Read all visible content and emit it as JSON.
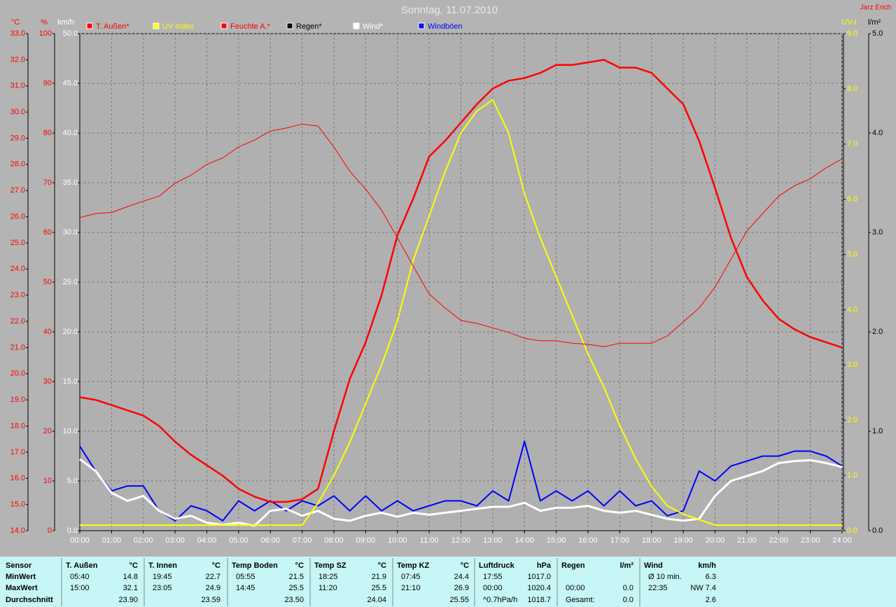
{
  "chart_data": {
    "type": "line",
    "title": "Sonntag, 11.07.2010",
    "author": "Jarz Erich",
    "xlim": [
      0,
      24
    ],
    "xticks": [
      {
        "value": 0,
        "label": "00:00"
      },
      {
        "value": 1,
        "label": "01:00"
      },
      {
        "value": 2,
        "label": "02:00"
      },
      {
        "value": 3,
        "label": "03:00"
      },
      {
        "value": 4,
        "label": "04:00"
      },
      {
        "value": 5,
        "label": "05:00"
      },
      {
        "value": 6,
        "label": "06:00"
      },
      {
        "value": 7,
        "label": "07:00"
      },
      {
        "value": 8,
        "label": "08:00"
      },
      {
        "value": 9,
        "label": "09:00"
      },
      {
        "value": 10,
        "label": "10:00"
      },
      {
        "value": 11,
        "label": "11:00"
      },
      {
        "value": 12,
        "label": "12:00"
      },
      {
        "value": 13,
        "label": "13:00"
      },
      {
        "value": 14,
        "label": "14:00"
      },
      {
        "value": 15,
        "label": "15:00"
      },
      {
        "value": 16,
        "label": "16:00"
      },
      {
        "value": 17,
        "label": "17:00"
      },
      {
        "value": 18,
        "label": "18:00"
      },
      {
        "value": 19,
        "label": "19:00"
      },
      {
        "value": 20,
        "label": "20:00"
      },
      {
        "value": 21,
        "label": "21:00"
      },
      {
        "value": 22,
        "label": "22:00"
      },
      {
        "value": 23,
        "label": "23:00"
      },
      {
        "value": 24,
        "label": "24:00"
      }
    ],
    "axes": [
      {
        "unit": "°C",
        "color": "#ff0000",
        "lim": [
          14,
          33
        ],
        "ticks": [
          {
            "value": 14,
            "label": "14.0"
          },
          {
            "value": 15,
            "label": "15.0"
          },
          {
            "value": 16,
            "label": "16.0"
          },
          {
            "value": 17,
            "label": "17.0"
          },
          {
            "value": 18,
            "label": "18.0"
          },
          {
            "value": 19,
            "label": "19.0"
          },
          {
            "value": 20,
            "label": "20.0"
          },
          {
            "value": 21,
            "label": "21.0"
          },
          {
            "value": 22,
            "label": "22.0"
          },
          {
            "value": 23,
            "label": "23.0"
          },
          {
            "value": 24,
            "label": "24.0"
          },
          {
            "value": 25,
            "label": "25.0"
          },
          {
            "value": 26,
            "label": "26.0"
          },
          {
            "value": 27,
            "label": "27.0"
          },
          {
            "value": 28,
            "label": "28.0"
          },
          {
            "value": 29,
            "label": "29.0"
          },
          {
            "value": 30,
            "label": "30.0"
          },
          {
            "value": 31,
            "label": "31.0"
          },
          {
            "value": 32,
            "label": "32.0"
          },
          {
            "value": 33,
            "label": "33.0"
          }
        ]
      },
      {
        "unit": "%",
        "color": "#ff0000",
        "lim": [
          0,
          100
        ],
        "ticks": [
          0,
          10,
          20,
          30,
          40,
          50,
          60,
          70,
          80,
          90,
          100
        ]
      },
      {
        "unit": "km/h",
        "color": "#ffffff",
        "lim": [
          0,
          50
        ],
        "grid": true,
        "ticks": [
          {
            "value": 0,
            "label": "0.0"
          },
          {
            "value": 5,
            "label": "5.0"
          },
          {
            "value": 10,
            "label": "10.0"
          },
          {
            "value": 15,
            "label": "15.0"
          },
          {
            "value": 20,
            "label": "20.0"
          },
          {
            "value": 25,
            "label": "25.0"
          },
          {
            "value": 30,
            "label": "30.0"
          },
          {
            "value": 35,
            "label": "35.0"
          },
          {
            "value": 40,
            "label": "40.0"
          },
          {
            "value": 45,
            "label": "45.0"
          },
          {
            "value": 50,
            "label": "50.0"
          }
        ]
      },
      {
        "unit": "UV-I",
        "color": "#ffff00",
        "lim": [
          0,
          9
        ],
        "ticks": [
          {
            "value": 0,
            "label": "0.0"
          },
          {
            "value": 1,
            "label": "1.0"
          },
          {
            "value": 2,
            "label": "2.0"
          },
          {
            "value": 3,
            "label": "3.0"
          },
          {
            "value": 4,
            "label": "4.0"
          },
          {
            "value": 5,
            "label": "5.0"
          },
          {
            "value": 6,
            "label": "6.0"
          },
          {
            "value": 7,
            "label": "7.0"
          },
          {
            "value": 8,
            "label": "8.0"
          },
          {
            "value": 9,
            "label": "9.0"
          }
        ]
      },
      {
        "unit": "l/m²",
        "color": "#000000",
        "lim": [
          0,
          5
        ],
        "ticks": [
          {
            "value": 0,
            "label": "0.0"
          },
          {
            "value": 1,
            "label": "1.0"
          },
          {
            "value": 2,
            "label": "2.0"
          },
          {
            "value": 3,
            "label": "3.0"
          },
          {
            "value": 4,
            "label": "4.0"
          },
          {
            "value": 5,
            "label": "5.0"
          }
        ]
      }
    ],
    "x": [
      0,
      0.5,
      1,
      1.5,
      2,
      2.5,
      3,
      3.5,
      4,
      4.5,
      5,
      5.5,
      6,
      6.5,
      7,
      7.5,
      8,
      8.5,
      9,
      9.5,
      10,
      10.5,
      11,
      11.5,
      12,
      12.5,
      13,
      13.5,
      14,
      14.5,
      15,
      15.5,
      16,
      16.5,
      17,
      17.5,
      18,
      18.5,
      19,
      19.5,
      20,
      20.5,
      21,
      21.5,
      22,
      22.5,
      23,
      23.5,
      24
    ],
    "series": [
      {
        "name": "T. Außen*",
        "color": "#ff0000",
        "axis": 0,
        "values": [
          19.1,
          19.0,
          18.8,
          18.6,
          18.4,
          18.0,
          17.4,
          16.9,
          16.5,
          16.1,
          15.6,
          15.3,
          15.1,
          15.1,
          15.2,
          15.6,
          17.8,
          19.8,
          21.2,
          23.0,
          25.3,
          26.7,
          28.3,
          28.9,
          29.6,
          30.3,
          30.9,
          31.2,
          31.3,
          31.5,
          31.8,
          31.8,
          31.9,
          32.0,
          31.7,
          31.7,
          31.5,
          30.9,
          30.3,
          28.9,
          27.1,
          25.2,
          23.7,
          22.8,
          22.1,
          21.7,
          21.4,
          21.2,
          21.0
        ]
      },
      {
        "name": "UV Index",
        "color": "#ffff00",
        "axis": 3,
        "values": [
          0.1,
          0.1,
          0.1,
          0.1,
          0.1,
          0.1,
          0.1,
          0.1,
          0.1,
          0.1,
          0.1,
          0.1,
          0.1,
          0.1,
          0.1,
          0.5,
          1.0,
          1.6,
          2.3,
          3.0,
          3.8,
          4.9,
          5.7,
          6.5,
          7.2,
          7.6,
          7.8,
          7.2,
          6.1,
          5.3,
          4.6,
          3.9,
          3.2,
          2.6,
          1.9,
          1.3,
          0.8,
          0.45,
          0.3,
          0.2,
          0.1,
          0.1,
          0.1,
          0.1,
          0.1,
          0.1,
          0.1,
          0.1,
          0.1
        ]
      },
      {
        "name": "Feuchte A.*",
        "color": "#ff0000",
        "axis": 1,
        "values": [
          63,
          63.8,
          64,
          65.2,
          66.3,
          67.3,
          69.9,
          71.5,
          73.7,
          75,
          77.2,
          78.6,
          80.4,
          81,
          81.8,
          81.4,
          77.2,
          72.3,
          68.7,
          64.5,
          58.9,
          53.2,
          47.6,
          44.8,
          42.3,
          41.7,
          40.8,
          39.9,
          38.7,
          38.2,
          38.2,
          37.7,
          37.5,
          37.0,
          37.7,
          37.7,
          37.7,
          39.2,
          42,
          44.8,
          49,
          54.6,
          60.3,
          63.8,
          67.3,
          69.4,
          70.8,
          73,
          74.8
        ]
      },
      {
        "name": "Regen*",
        "color": "#000000",
        "axis": 4,
        "values": [
          0,
          0,
          0,
          0,
          0,
          0,
          0,
          0,
          0,
          0,
          0,
          0,
          0,
          0,
          0,
          0,
          0,
          0,
          0,
          0,
          0,
          0,
          0,
          0,
          0,
          0,
          0,
          0,
          0,
          0,
          0,
          0,
          0,
          0,
          0,
          0,
          0,
          0,
          0,
          0,
          0,
          0,
          0,
          0,
          0,
          0,
          0,
          0,
          0
        ]
      },
      {
        "name": "Wind*",
        "color": "#ffffff",
        "axis": 2,
        "values": [
          7.2,
          6.0,
          3.8,
          3.0,
          3.5,
          2.0,
          1.2,
          1.5,
          0.8,
          0.6,
          0.8,
          0.5,
          2.0,
          2.2,
          1.5,
          2.0,
          1.2,
          1.0,
          1.5,
          1.8,
          1.4,
          1.8,
          1.6,
          1.8,
          2.0,
          2.2,
          2.4,
          2.4,
          2.8,
          2.0,
          2.3,
          2.3,
          2.5,
          2.0,
          1.8,
          2.0,
          1.6,
          1.2,
          1.0,
          1.2,
          3.5,
          5.0,
          5.5,
          6.0,
          6.8,
          7.0,
          7.1,
          6.8,
          6.4
        ]
      },
      {
        "name": "Windböen",
        "color": "#0000ff",
        "axis": 2,
        "values": [
          8.5,
          6,
          4,
          4.5,
          4.5,
          2,
          1,
          2.5,
          2,
          1,
          3,
          2,
          3,
          2,
          3,
          2.5,
          3.5,
          2,
          3.5,
          2,
          3,
          2,
          2.5,
          3,
          3,
          2.5,
          4,
          3,
          9,
          3,
          4,
          3,
          4,
          2.5,
          4,
          2.5,
          3,
          1.5,
          2,
          6,
          5,
          6.5,
          7,
          7.5,
          7.5,
          8,
          8,
          7.5,
          6.5
        ]
      }
    ]
  },
  "table": {
    "row_labels": [
      "Sensor",
      "MinWert",
      "MaxWert",
      "Durchschnitt"
    ],
    "groups": [
      {
        "title": "T. Außen",
        "unit": "°C",
        "rows": [
          [
            "05:40",
            "14.8"
          ],
          [
            "15:00",
            "32.1"
          ],
          [
            null,
            "23.90"
          ]
        ]
      },
      {
        "title": "T. Innen",
        "unit": "°C",
        "rows": [
          [
            "19:45",
            "22.7"
          ],
          [
            "23:05",
            "24.9"
          ],
          [
            null,
            "23.59"
          ]
        ]
      },
      {
        "title": "Temp Boden",
        "unit": "°C",
        "rows": [
          [
            "05:55",
            "21.5"
          ],
          [
            "14:45",
            "25.5"
          ],
          [
            null,
            "23.50"
          ]
        ]
      },
      {
        "title": "Temp SZ",
        "unit": "°C",
        "rows": [
          [
            "18:25",
            "21.9"
          ],
          [
            "11:20",
            "25.5"
          ],
          [
            null,
            "24.04"
          ]
        ]
      },
      {
        "title": "Temp KZ",
        "unit": "°C",
        "rows": [
          [
            "07:45",
            "24.4"
          ],
          [
            "21:10",
            "26.9"
          ],
          [
            null,
            "25.55"
          ]
        ]
      },
      {
        "title": "Luftdruck",
        "unit": "hPa",
        "rows": [
          [
            "17:55",
            "1017.0"
          ],
          [
            "00:00",
            "1020.4"
          ],
          [
            "^0.7hPa/h",
            "1018.7"
          ]
        ]
      },
      {
        "title": "Regen",
        "unit": "l/m²",
        "rows": [
          [
            null,
            null
          ],
          [
            "00:00",
            "0.0"
          ],
          [
            "Gesamt:",
            "0.0"
          ]
        ]
      },
      {
        "title": "Wind",
        "unit": "km/h",
        "rows": [
          [
            "Ø 10 min.",
            "6.3"
          ],
          [
            "22:35",
            "NW 7.4"
          ],
          [
            null,
            "2.6"
          ]
        ]
      }
    ]
  }
}
